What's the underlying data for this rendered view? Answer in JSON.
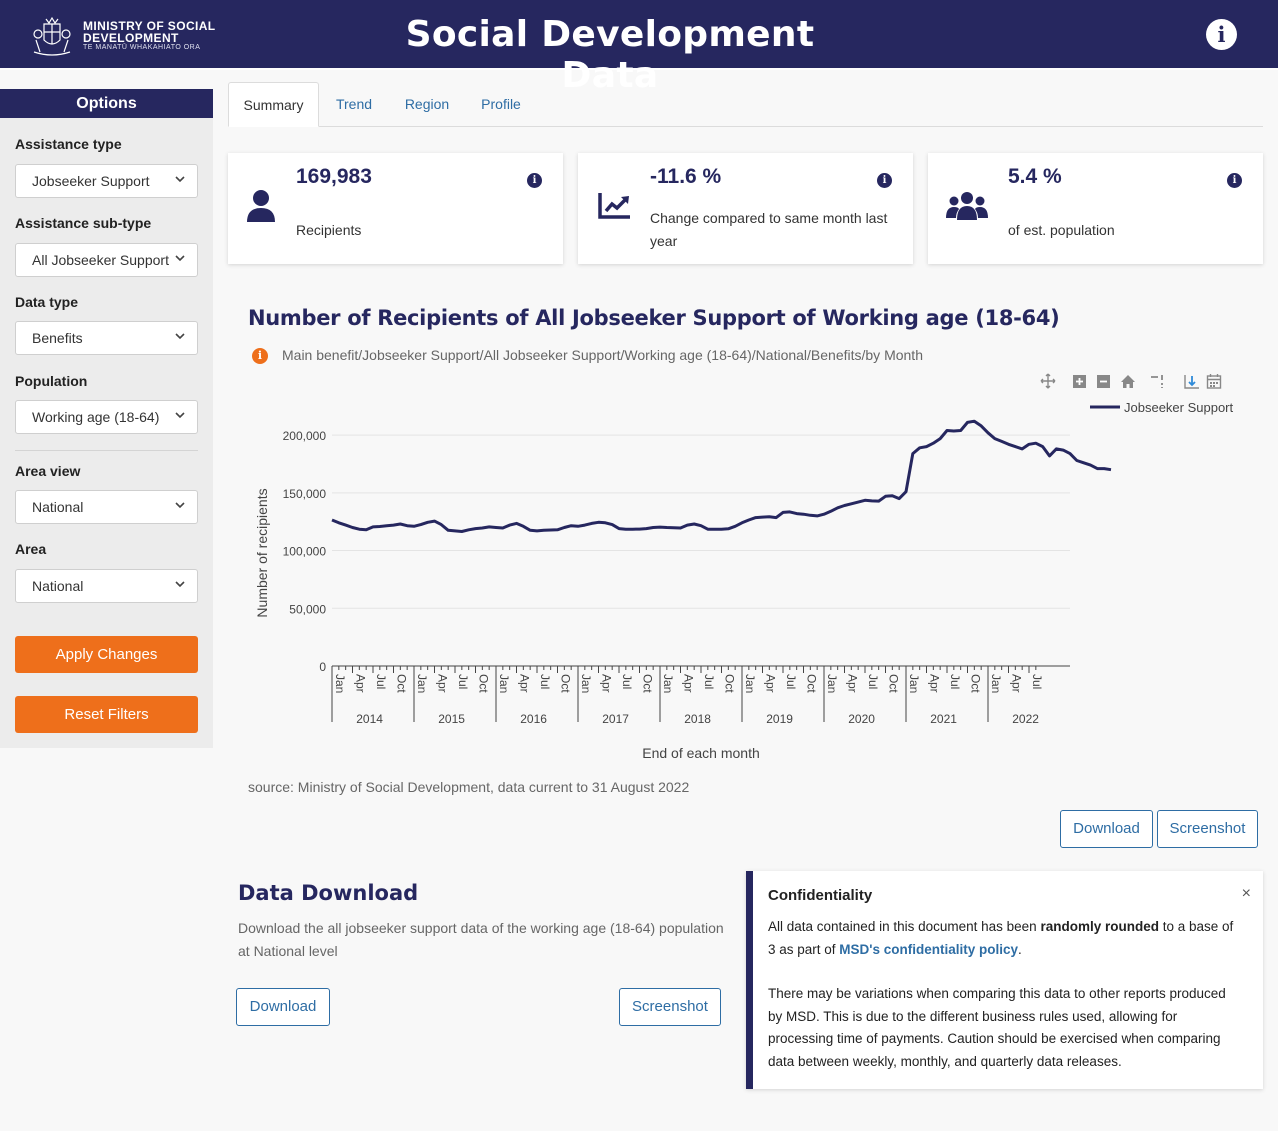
{
  "header": {
    "logo_line1": "MINISTRY OF SOCIAL",
    "logo_line2": "DEVELOPMENT",
    "logo_line3": "TE MANATŪ WHAKAHIATO ORA",
    "title": "Social Development Data"
  },
  "sidebar": {
    "title": "Options",
    "filters": [
      {
        "label": "Assistance type",
        "value": "Jobseeker Support"
      },
      {
        "label": "Assistance sub-type",
        "value": "All Jobseeker Support"
      },
      {
        "label": "Data type",
        "value": "Benefits"
      },
      {
        "label": "Population",
        "value": "Working age (18-64)"
      },
      {
        "label": "Area view",
        "value": "National"
      },
      {
        "label": "Area",
        "value": "National"
      }
    ],
    "apply_label": "Apply Changes",
    "reset_label": "Reset Filters"
  },
  "tabs": [
    {
      "label": "Summary",
      "active": true
    },
    {
      "label": "Trend",
      "active": false
    },
    {
      "label": "Region",
      "active": false
    },
    {
      "label": "Profile",
      "active": false
    }
  ],
  "cards": [
    {
      "value": "169,983",
      "label": "Recipients",
      "icon": "person-icon"
    },
    {
      "value": "-11.6 %",
      "label": "Change compared to same month last year",
      "icon": "trend-chart-icon"
    },
    {
      "value": "5.4 %",
      "label": "of est. population",
      "icon": "people-group-icon"
    }
  ],
  "chart": {
    "title": "Number of Recipients of All Jobseeker Support of Working age (18-64)",
    "subtitle": "Main benefit/Jobseeker Support/All Jobseeker Support/Working age (18-64)/National/Benefits/by Month",
    "source": "source: Ministry of Social Development, data current to 31 August 2022",
    "modebar": [
      "pan-icon",
      "zoom-in-icon",
      "zoom-out-icon",
      "reset-axes-icon",
      "spike-lines-icon",
      "compare-hover-icon",
      "calendar-icon"
    ]
  },
  "chart_data": {
    "type": "line",
    "ylabel": "Number of recipients",
    "xlabel": "End of each month",
    "ylim": [
      0,
      220000
    ],
    "yticks": [
      0,
      50000,
      100000,
      150000,
      200000
    ],
    "ytick_labels": [
      "0",
      "50,000",
      "100,000",
      "150,000",
      "200,000"
    ],
    "x_month_labels": [
      "Jan",
      "Apr",
      "Jul",
      "Oct"
    ],
    "x_years": [
      "2014",
      "2015",
      "2016",
      "2017",
      "2018",
      "2019",
      "2020",
      "2021",
      "2022"
    ],
    "grid": true,
    "legend_position": "top-right",
    "series": [
      {
        "name": "Jobseeker Support",
        "color": "#26275f",
        "start": "Jan 2014",
        "values": [
          126500,
          124000,
          122000,
          120000,
          118500,
          118000,
          120500,
          120800,
          121500,
          122000,
          123000,
          121500,
          121000,
          122500,
          124500,
          125500,
          122500,
          117500,
          117000,
          116500,
          118000,
          119000,
          119500,
          120500,
          120000,
          119500,
          122000,
          123500,
          121000,
          117500,
          117000,
          117500,
          117800,
          118000,
          120000,
          121500,
          121000,
          122000,
          123500,
          124500,
          124000,
          122500,
          119000,
          118500,
          118500,
          118600,
          119000,
          120000,
          120300,
          120000,
          119800,
          119500,
          122000,
          123000,
          121500,
          118500,
          118500,
          118500,
          118800,
          121000,
          124000,
          126500,
          128500,
          129000,
          129200,
          128500,
          133000,
          133500,
          132000,
          131500,
          130500,
          130000,
          131500,
          134000,
          137000,
          139000,
          140500,
          142000,
          143500,
          143000,
          142800,
          147000,
          147500,
          145000,
          151000,
          184000,
          189000,
          190000,
          193000,
          197000,
          204000,
          203500,
          204000,
          211000,
          212000,
          208000,
          202000,
          197000,
          194500,
          192000,
          190000,
          188000,
          192000,
          193000,
          190000,
          182000,
          188000,
          187000,
          184000,
          178000,
          176000,
          174000,
          171000,
          171000,
          169983
        ]
      }
    ]
  },
  "buttons": {
    "download": "Download",
    "screenshot": "Screenshot"
  },
  "data_download": {
    "title": "Data Download",
    "description": "Download the all jobseeker support data of the working age (18-64) population at National level",
    "download": "Download",
    "screenshot": "Screenshot"
  },
  "confidentiality": {
    "title": "Confidentiality",
    "p1_before": "All data contained in this document has been ",
    "p1_bold": "randomly rounded",
    "p1_mid": " to a base of 3 as part of ",
    "p1_link": "MSD's confidentiality policy",
    "p1_after": ".",
    "p2": "There may be variations when comparing this data to other reports produced by MSD. This is due to the different business rules used, allowing for processing time of payments. Caution should be exercised when comparing data between weekly, monthly, and quarterly data releases.",
    "close": "×"
  },
  "colors": {
    "navy": "#26275f",
    "orange": "#ee6f1b",
    "link": "#2e6da4"
  }
}
